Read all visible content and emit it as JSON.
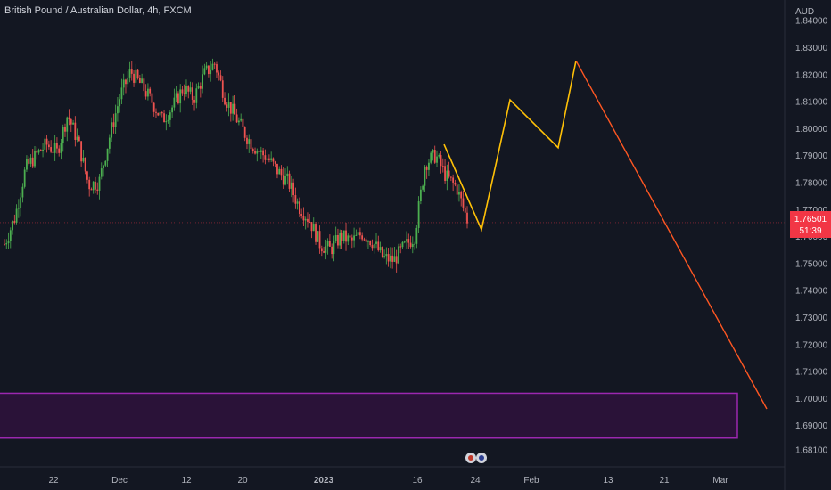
{
  "header": {
    "symbol_title": "British Pound / Australian Dollar, 4h, FXCM"
  },
  "currency_label": "AUD",
  "last_price": {
    "value": "1.76501",
    "countdown": "51:39",
    "color": "#f23645"
  },
  "colors": {
    "background": "#131722",
    "bull": "#4caf50",
    "bear": "#ef5350",
    "projection_yellow": "#ffc107",
    "projection_orange": "#ff5722",
    "zone_border": "#9c27b0",
    "zone_fill": "#2a1238",
    "axis_text": "#b2b5be"
  },
  "chart_data": {
    "type": "line",
    "instrument": "GBPAUD",
    "timeframe": "4h",
    "ylim": [
      1.677,
      1.845
    ],
    "y_ticks": [
      "1.84000",
      "1.83000",
      "1.82000",
      "1.81000",
      "1.80000",
      "1.79000",
      "1.78000",
      "1.77000",
      "1.76000",
      "1.75000",
      "1.74000",
      "1.73000",
      "1.72000",
      "1.71000",
      "1.70000",
      "1.69000",
      "1.68100"
    ],
    "x_ticks": [
      "22",
      "Dec",
      "12",
      "20",
      "2023",
      "16",
      "24",
      "Feb",
      "13",
      "21",
      "Mar"
    ],
    "price_path": [
      [
        1.757,
        1.767,
        1.785,
        1.79,
        1.794,
        1.791,
        1.805,
        1.795,
        1.779,
        1.78,
        1.797,
        1.812,
        1.821,
        1.816,
        1.81,
        1.803,
        1.808,
        1.815,
        1.811,
        1.82,
        1.824,
        1.811,
        1.804,
        1.797,
        1.792,
        1.789,
        1.784,
        1.78,
        1.771,
        1.766,
        1.757,
        1.755,
        1.76,
        1.758,
        1.761,
        1.758,
        1.752,
        1.751,
        1.756,
        1.76,
        1.787,
        1.79,
        1.782,
        1.778,
        1.766
      ]
    ],
    "projection": {
      "yellow_path": [
        1.794,
        1.7624,
        1.8105,
        1.7928,
        1.825
      ],
      "orange_path": [
        1.825,
        1.696
      ]
    },
    "demand_zone": {
      "top": 1.7018,
      "bottom": 1.6852
    }
  }
}
